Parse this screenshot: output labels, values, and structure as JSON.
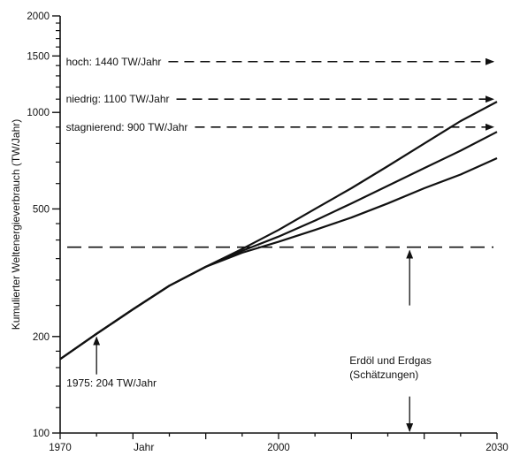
{
  "chart_data": {
    "type": "line",
    "xlabel": "Jahr",
    "ylabel": "Kumulierter Weltenergieverbrauch (TW/Jahr)",
    "xlim": [
      1970,
      2030
    ],
    "ylim": [
      100,
      2000
    ],
    "yscale": "log",
    "grid": false,
    "x_ticks": [
      1970,
      1975,
      1980,
      1985,
      1990,
      1995,
      2000,
      2005,
      2010,
      2015,
      2020,
      2025,
      2030
    ],
    "x_tick_labels": [
      {
        "x": 1970,
        "label": "1970"
      },
      {
        "x": 2000,
        "label": "2000"
      },
      {
        "x": 2030,
        "label": "2030"
      }
    ],
    "y_tick_labels": [
      {
        "y": 100,
        "label": "100"
      },
      {
        "y": 200,
        "label": "200"
      },
      {
        "y": 500,
        "label": "500"
      },
      {
        "y": 1000,
        "label": "1000"
      },
      {
        "y": 1500,
        "label": "1500"
      },
      {
        "y": 2000,
        "label": "2000"
      }
    ],
    "y_minor_ticks": [
      120,
      140,
      160,
      180,
      250,
      300,
      350,
      400,
      450,
      600,
      700,
      800,
      900,
      1100,
      1200,
      1300,
      1400,
      1600,
      1700,
      1800,
      1900
    ],
    "series": [
      {
        "name": "hoch",
        "x": [
          1970,
          1975,
          1980,
          1985,
          1990,
          1995,
          2000,
          2005,
          2010,
          2015,
          2020,
          2025,
          2030
        ],
        "values": [
          170,
          204,
          243,
          288,
          330,
          375,
          430,
          500,
          580,
          680,
          800,
          940,
          1080
        ]
      },
      {
        "name": "niedrig",
        "x": [
          1970,
          1975,
          1980,
          1985,
          1990,
          1995,
          2000,
          2005,
          2010,
          2015,
          2020,
          2025,
          2030
        ],
        "values": [
          170,
          204,
          243,
          288,
          330,
          370,
          410,
          460,
          520,
          590,
          670,
          760,
          870
        ]
      },
      {
        "name": "stagnierend",
        "x": [
          1970,
          1975,
          1980,
          1985,
          1990,
          1995,
          2000,
          2005,
          2010,
          2015,
          2020,
          2025,
          2030
        ],
        "values": [
          170,
          204,
          243,
          288,
          330,
          365,
          395,
          430,
          470,
          520,
          580,
          640,
          720
        ]
      }
    ],
    "reference_lines": [
      {
        "label": "hoch: 1440 TW/Jahr",
        "y": 1440
      },
      {
        "label": "niedrig: 1100 TW/Jahr",
        "y": 1100
      },
      {
        "label": "stagnierend: 900 TW/Jahr",
        "y": 900
      },
      {
        "label": "",
        "y": 380
      }
    ],
    "annotations": [
      {
        "text": "1975: 204 TW/Jahr",
        "x": 1975,
        "y": 204
      },
      {
        "text": "Erdöl und Erdgas",
        "x": 2018,
        "y": 175
      },
      {
        "text": "(Schätzungen)",
        "x": 2018,
        "y": 160
      }
    ],
    "arrow_markers": [
      {
        "x": 2018,
        "y_from": 250,
        "y_to": 380
      },
      {
        "x": 2018,
        "y_from": 130,
        "y_to": 100
      }
    ]
  }
}
